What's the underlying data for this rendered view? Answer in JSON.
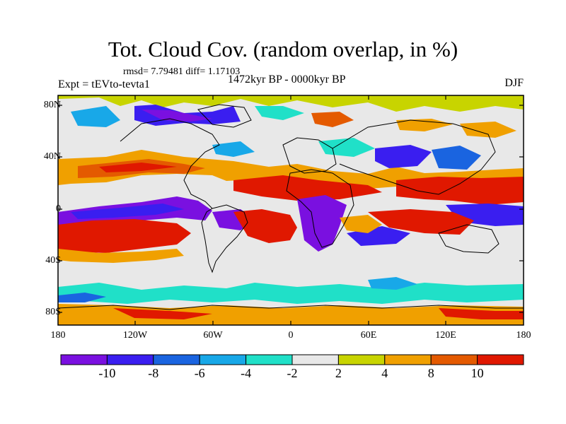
{
  "title": "Tot. Cloud Cov. (random overlap, in %)",
  "stats": "rmsd= 7.79481 diff= 1.17103",
  "expt": "Expt = tEVto-tevta1",
  "period": "1472kyr BP - 0000kyr BP",
  "season": "DJF",
  "lat_labels": [
    "80N",
    "40N",
    "0",
    "40S",
    "80S"
  ],
  "lon_labels": [
    "180",
    "120W",
    "60W",
    "0",
    "60E",
    "120E",
    "180"
  ],
  "colorbar": {
    "labels": [
      "-10",
      "-8",
      "-6",
      "-4",
      "-2",
      "2",
      "4",
      "8",
      "10"
    ],
    "colors": [
      "#7a10e0",
      "#3a1ef0",
      "#1a64e0",
      "#18a8e8",
      "#20e0c8",
      "#e8e8e8",
      "#c8d400",
      "#f0a000",
      "#e45a00",
      "#e01800"
    ]
  },
  "map_colors": {
    "ocean_background": "#e8e8e8",
    "coastline": "#000000"
  }
}
